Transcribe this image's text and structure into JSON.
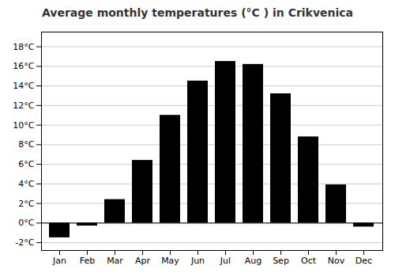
{
  "chart_data": {
    "type": "bar",
    "title": "Average monthly temperatures (°C ) in Crikvenica",
    "categories": [
      "Jan",
      "Feb",
      "Mar",
      "Apr",
      "May",
      "Jun",
      "Jul",
      "Aug",
      "Sep",
      "Oct",
      "Nov",
      "Dec"
    ],
    "values": [
      -1.5,
      -0.3,
      2.4,
      6.4,
      11.0,
      14.5,
      16.5,
      16.2,
      13.2,
      8.8,
      3.9,
      -0.4
    ],
    "ylim": [
      -2.8,
      19.5
    ],
    "yticks": [
      {
        "value": -2,
        "label": "-2°C"
      },
      {
        "value": 0,
        "label": "0°C"
      },
      {
        "value": 2,
        "label": "2°C"
      },
      {
        "value": 4,
        "label": "4°C"
      },
      {
        "value": 6,
        "label": "6°C"
      },
      {
        "value": 8,
        "label": "8°C"
      },
      {
        "value": 10,
        "label": "10°C"
      },
      {
        "value": 12,
        "label": "12°C"
      },
      {
        "value": 14,
        "label": "14°C"
      },
      {
        "value": 16,
        "label": "16°C"
      },
      {
        "value": 18,
        "label": "18°C"
      }
    ],
    "grid": true
  }
}
